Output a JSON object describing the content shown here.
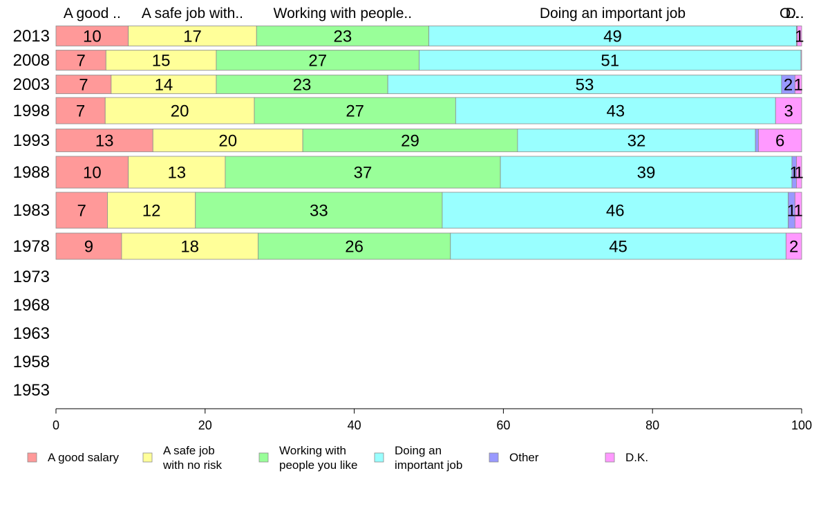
{
  "chart_data": {
    "type": "bar",
    "orientation": "horizontal",
    "stacked": true,
    "title": "",
    "xlabel": "",
    "ylabel": "",
    "xlim": [
      0,
      100
    ],
    "x_ticks": [
      "0",
      "20",
      "40",
      "60",
      "80",
      "100"
    ],
    "grid": false,
    "legend_position": "bottom",
    "categories": [
      "2013",
      "2008",
      "2003",
      "1998",
      "1993",
      "1988",
      "1983",
      "1978",
      "1973",
      "1968",
      "1963",
      "1958",
      "1953"
    ],
    "top_labels": [
      "A good ..",
      "A safe job with..",
      "Working with people..",
      "Doing an important job",
      "O..",
      "D.."
    ],
    "series": [
      {
        "name": "A good salary",
        "legend_lines": [
          "A good salary"
        ],
        "color": "#ff9999",
        "values": [
          9.7,
          6.7,
          7.4,
          6.6,
          13.0,
          9.7,
          6.9,
          8.8,
          null,
          null,
          null,
          null,
          null
        ],
        "labels": [
          "10",
          "7",
          "7",
          "7",
          "13",
          "10",
          "7",
          "9",
          "",
          "",
          "",
          "",
          ""
        ]
      },
      {
        "name": "A safe job with no risk",
        "legend_lines": [
          "A safe job",
          "with no risk"
        ],
        "color": "#ffff99",
        "values": [
          17.2,
          14.8,
          14.1,
          20.0,
          20.1,
          13.0,
          11.8,
          18.3,
          null,
          null,
          null,
          null,
          null
        ],
        "labels": [
          "17",
          "15",
          "14",
          "20",
          "20",
          "13",
          "12",
          "18",
          "",
          "",
          "",
          "",
          ""
        ]
      },
      {
        "name": "Working with people you like",
        "legend_lines": [
          "Working with",
          "people you like"
        ],
        "color": "#99ff99",
        "values": [
          23.1,
          27.2,
          23.0,
          27.0,
          28.8,
          36.9,
          33.1,
          25.8,
          null,
          null,
          null,
          null,
          null
        ],
        "labels": [
          "23",
          "27",
          "23",
          "27",
          "29",
          "37",
          "33",
          "26",
          "",
          "",
          "",
          "",
          ""
        ]
      },
      {
        "name": "Doing an important job",
        "legend_lines": [
          "Doing an",
          "important job"
        ],
        "color": "#99ffff",
        "values": [
          49.3,
          51.2,
          52.8,
          42.9,
          31.9,
          39.1,
          46.4,
          45.0,
          null,
          null,
          null,
          null,
          null
        ],
        "labels": [
          "49",
          "51",
          "53",
          "43",
          "32",
          "39",
          "46",
          "45",
          "",
          "",
          "",
          "",
          ""
        ]
      },
      {
        "name": "Other",
        "legend_lines": [
          "Other"
        ],
        "color": "#9999ff",
        "values": [
          0.1,
          0.0,
          1.8,
          0.0,
          0.4,
          0.6,
          0.9,
          0.0,
          null,
          null,
          null,
          null,
          null
        ],
        "labels": [
          "",
          "",
          "2",
          "",
          "",
          "1",
          "1",
          "",
          "",
          "",
          "",
          "",
          ""
        ]
      },
      {
        "name": "D.K.",
        "legend_lines": [
          "D.K."
        ],
        "color": "#ff99ff",
        "values": [
          0.6,
          0.1,
          0.9,
          3.5,
          5.8,
          0.7,
          0.9,
          2.1,
          null,
          null,
          null,
          null,
          null
        ],
        "labels": [
          "1",
          "",
          "1",
          "3",
          "6",
          "1",
          "1",
          "2",
          "",
          "",
          "",
          "",
          ""
        ]
      }
    ]
  }
}
